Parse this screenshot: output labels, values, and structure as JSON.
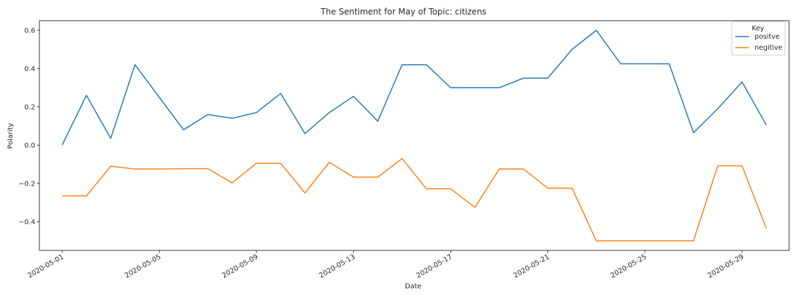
{
  "chart_data": {
    "type": "line",
    "title": "The Sentiment for May of Topic: citizens",
    "xlabel": "Date",
    "ylabel": "Polarity",
    "xlim": [
      "2020-04-30T01:30",
      "2020-05-30T22:30"
    ],
    "ylim": [
      -0.55,
      0.65
    ],
    "xticks": [
      "2020-05-01",
      "2020-05-05",
      "2020-05-09",
      "2020-05-13",
      "2020-05-17",
      "2020-05-21",
      "2020-05-25",
      "2020-05-29"
    ],
    "yticks": [
      -0.4,
      -0.2,
      0.0,
      0.2,
      0.4,
      0.6
    ],
    "ytick_labels": [
      "−0.4",
      "−0.2",
      "0.0",
      "0.2",
      "0.4",
      "0.6"
    ],
    "grid": false,
    "legend": {
      "title": "Key",
      "position": "top-right"
    },
    "x": [
      "2020-05-01",
      "2020-05-02",
      "2020-05-03",
      "2020-05-04",
      "2020-05-05",
      "2020-05-06",
      "2020-05-07",
      "2020-05-08",
      "2020-05-09",
      "2020-05-10",
      "2020-05-11",
      "2020-05-12",
      "2020-05-13",
      "2020-05-14",
      "2020-05-15",
      "2020-05-16",
      "2020-05-17",
      "2020-05-18",
      "2020-05-19",
      "2020-05-20",
      "2020-05-21",
      "2020-05-22",
      "2020-05-23",
      "2020-05-24",
      "2020-05-25",
      "2020-05-26",
      "2020-05-27",
      "2020-05-28",
      "2020-05-29",
      "2020-05-30"
    ],
    "series": [
      {
        "name": "positve",
        "color": "#1f77b4",
        "values": [
          0.0,
          0.26,
          0.035,
          0.42,
          0.25,
          0.08,
          0.16,
          0.14,
          0.17,
          0.27,
          0.06,
          0.17,
          0.255,
          0.125,
          0.42,
          0.42,
          0.3,
          0.3,
          0.3,
          0.35,
          0.35,
          0.5,
          0.6,
          0.425,
          0.425,
          0.425,
          0.065,
          0.19,
          0.33,
          0.105
        ]
      },
      {
        "name": "negitive",
        "color": "#ff7f0e",
        "values": [
          -0.265,
          -0.265,
          -0.11,
          -0.125,
          -0.125,
          -0.123,
          -0.123,
          -0.197,
          -0.095,
          -0.095,
          -0.25,
          -0.09,
          -0.167,
          -0.167,
          -0.07,
          -0.228,
          -0.228,
          -0.325,
          -0.125,
          -0.125,
          -0.225,
          -0.225,
          -0.5,
          -0.5,
          -0.5,
          -0.5,
          -0.5,
          -0.108,
          -0.108,
          -0.435
        ]
      }
    ]
  }
}
